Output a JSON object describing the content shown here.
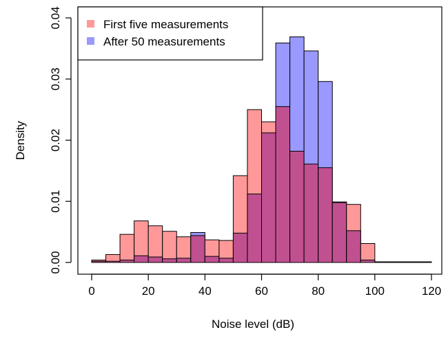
{
  "chart_data": {
    "type": "bar",
    "subtype": "overlapping-histogram",
    "xlabel": "Noise level (dB)",
    "ylabel": "Density",
    "xlim": [
      0,
      120
    ],
    "ylim": [
      0,
      0.04
    ],
    "xticks": [
      "0",
      "20",
      "40",
      "60",
      "80",
      "100",
      "120"
    ],
    "yticks": [
      "0.00",
      "0.01",
      "0.02",
      "0.03",
      "0.04"
    ],
    "bin_width": 5,
    "bin_starts": [
      0,
      5,
      10,
      15,
      20,
      25,
      30,
      35,
      40,
      45,
      50,
      55,
      60,
      65,
      70,
      75,
      80,
      85,
      90,
      95,
      100,
      105,
      110,
      115
    ],
    "grid": false,
    "legend_position": "top-left",
    "overlap_color": "#c05090",
    "series": [
      {
        "name": "First five measurements",
        "color": "#ff9999",
        "values": [
          0.0004,
          0.0013,
          0.0046,
          0.0068,
          0.006,
          0.0051,
          0.0042,
          0.0044,
          0.0037,
          0.0036,
          0.0142,
          0.025,
          0.023,
          0.0255,
          0.0182,
          0.0161,
          0.0155,
          0.0099,
          0.0095,
          0.0031,
          0.0001,
          0.0001,
          0.0001,
          0.0001
        ]
      },
      {
        "name": "After 50 measurements",
        "color": "#9999ff",
        "values": [
          0.0002,
          0.0002,
          0.0004,
          0.0011,
          0.0009,
          0.0006,
          0.0007,
          0.0049,
          0.001,
          0.0007,
          0.0048,
          0.0112,
          0.0212,
          0.0359,
          0.0369,
          0.0346,
          0.0296,
          0.0098,
          0.0052,
          0.0004,
          0.0001,
          0.0001,
          0.0001,
          0.0001
        ]
      }
    ]
  }
}
